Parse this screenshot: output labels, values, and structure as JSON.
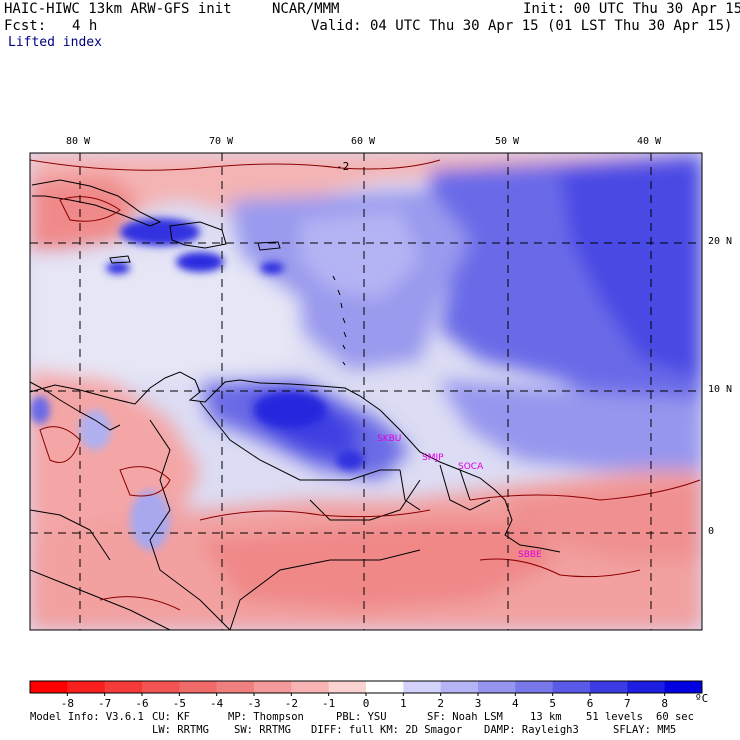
{
  "header": {
    "title": "HAIC-HIWC 13km ARW-GFS init",
    "org": "NCAR/MMM",
    "init": "Init: 00 UTC Thu 30 Apr 15",
    "fcst_label": "Fcst:",
    "fcst_value": "4 h",
    "valid": "Valid: 04 UTC Thu 30 Apr 15 (01 LST Thu 30 Apr 15)",
    "field": "Lifted index"
  },
  "lon_labels": [
    "80 W",
    "70 W",
    "60 W",
    "50 W",
    "40 W"
  ],
  "lat_labels": [
    "20 N",
    "10 N",
    "0"
  ],
  "contour_label": "-2",
  "stations": [
    "SKBU",
    "SMJP",
    "SOCA",
    "SBBE"
  ],
  "colorbar": {
    "labels": [
      "-8",
      "-7",
      "-6",
      "-5",
      "-4",
      "-3",
      "-2",
      "-1",
      "0",
      "1",
      "2",
      "3",
      "4",
      "5",
      "6",
      "7",
      "8"
    ],
    "unit": "ºC",
    "colors": [
      "#ff0000",
      "#f81f1f",
      "#f53a3a",
      "#f25454",
      "#f06a6a",
      "#f08080",
      "#f49a9a",
      "#f8b4b4",
      "#fbd2d2",
      "#ffffff",
      "#d2d2fb",
      "#b4b4f6",
      "#9696f0",
      "#7878eb",
      "#5a5ae8",
      "#3c3ce4",
      "#1e1ee2",
      "#0000e0"
    ]
  },
  "footer": {
    "line1": [
      "Model Info: V3.6.1",
      "CU: KF",
      "MP: Thompson",
      "PBL: YSU",
      "SF: Noah LSM",
      "13 km",
      "51 levels",
      "60 sec"
    ],
    "line2": [
      "LW: RRTMG",
      "SW: RRTMG",
      "DIFF: full",
      "KM: 2D Smagor",
      "DAMP: Rayleigh3",
      "SFLAY: MM5"
    ]
  }
}
